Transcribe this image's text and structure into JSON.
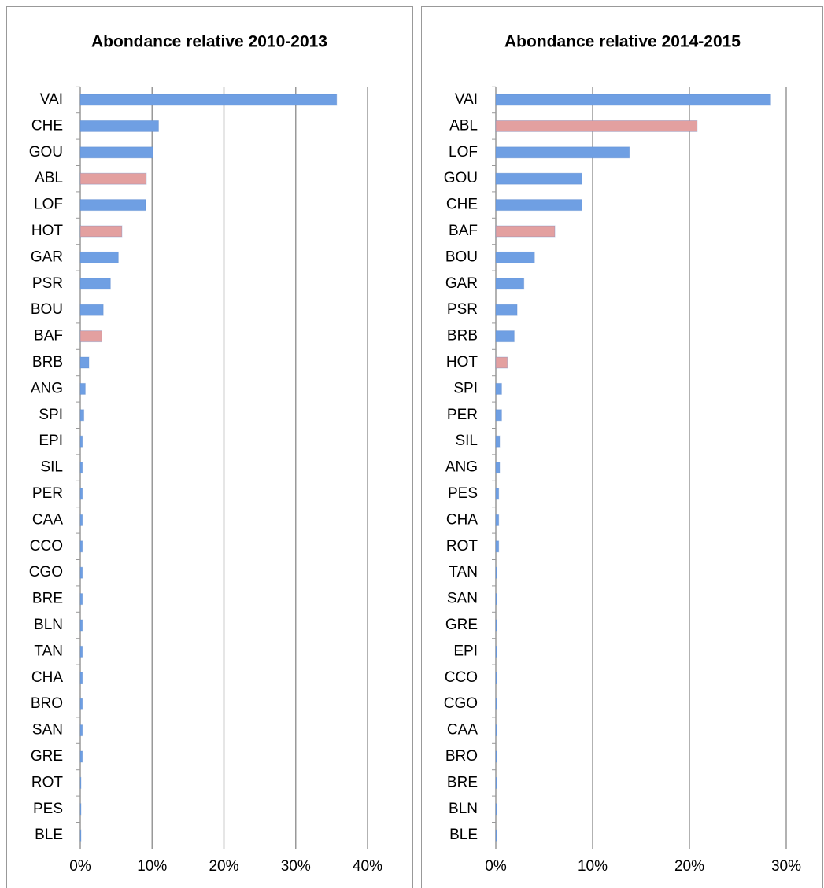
{
  "chart_data": [
    {
      "type": "barh",
      "title": "Abondance relative 2010-2013",
      "categories": [
        "VAI",
        "CHE",
        "GOU",
        "ABL",
        "LOF",
        "HOT",
        "GAR",
        "PSR",
        "BOU",
        "BAF",
        "BRB",
        "ANG",
        "SPI",
        "EPI",
        "SIL",
        "PER",
        "CAA",
        "CCO",
        "CGO",
        "BRE",
        "BLN",
        "TAN",
        "CHA",
        "BRO",
        "SAN",
        "GRE",
        "ROT",
        "PES",
        "BLE"
      ],
      "values": [
        35.7,
        10.9,
        10.1,
        9.2,
        9.1,
        5.8,
        5.3,
        4.2,
        3.2,
        3.0,
        1.2,
        0.7,
        0.5,
        0.3,
        0.3,
        0.3,
        0.3,
        0.3,
        0.3,
        0.3,
        0.3,
        0.3,
        0.3,
        0.3,
        0.3,
        0.3,
        0.1,
        0.1,
        0.1
      ],
      "colors": [
        "#6f9fe3",
        "#6f9fe3",
        "#6f9fe3",
        "#e3a0a0",
        "#6f9fe3",
        "#e3a0a0",
        "#6f9fe3",
        "#6f9fe3",
        "#6f9fe3",
        "#e3a0a0",
        "#6f9fe3",
        "#6f9fe3",
        "#6f9fe3",
        "#6f9fe3",
        "#6f9fe3",
        "#6f9fe3",
        "#6f9fe3",
        "#6f9fe3",
        "#6f9fe3",
        "#6f9fe3",
        "#6f9fe3",
        "#6f9fe3",
        "#6f9fe3",
        "#6f9fe3",
        "#6f9fe3",
        "#6f9fe3",
        "#6f9fe3",
        "#6f9fe3",
        "#6f9fe3"
      ],
      "xlim": [
        0,
        40
      ],
      "xticks": [
        {
          "value": 0,
          "label": "0%"
        },
        {
          "value": 10,
          "label": "10%"
        },
        {
          "value": 20,
          "label": "20%"
        },
        {
          "value": 30,
          "label": "30%"
        },
        {
          "value": 40,
          "label": "40%"
        }
      ],
      "grid": true
    },
    {
      "type": "barh",
      "title": "Abondance relative  2014-2015",
      "categories": [
        "VAI",
        "ABL",
        "LOF",
        "GOU",
        "CHE",
        "BAF",
        "BOU",
        "GAR",
        "PSR",
        "BRB",
        "HOT",
        "SPI",
        "PER",
        "SIL",
        "ANG",
        "PES",
        "CHA",
        "ROT",
        "TAN",
        "SAN",
        "GRE",
        "EPI",
        "CCO",
        "CGO",
        "CAA",
        "BRO",
        "BRE",
        "BLN",
        "BLE"
      ],
      "values": [
        28.4,
        20.8,
        13.8,
        8.9,
        8.9,
        6.1,
        4.0,
        2.9,
        2.2,
        1.9,
        1.2,
        0.6,
        0.6,
        0.4,
        0.4,
        0.3,
        0.3,
        0.3,
        0.1,
        0.1,
        0.1,
        0.1,
        0.1,
        0.1,
        0.1,
        0.1,
        0.1,
        0.1,
        0.1
      ],
      "colors": [
        "#6f9fe3",
        "#e3a0a0",
        "#6f9fe3",
        "#6f9fe3",
        "#6f9fe3",
        "#e3a0a0",
        "#6f9fe3",
        "#6f9fe3",
        "#6f9fe3",
        "#6f9fe3",
        "#e3a0a0",
        "#6f9fe3",
        "#6f9fe3",
        "#6f9fe3",
        "#6f9fe3",
        "#6f9fe3",
        "#6f9fe3",
        "#6f9fe3",
        "#6f9fe3",
        "#6f9fe3",
        "#6f9fe3",
        "#6f9fe3",
        "#6f9fe3",
        "#6f9fe3",
        "#6f9fe3",
        "#6f9fe3",
        "#6f9fe3",
        "#6f9fe3",
        "#6f9fe3"
      ],
      "xlim": [
        0,
        30
      ],
      "xticks": [
        {
          "value": 0,
          "label": "0%"
        },
        {
          "value": 10,
          "label": "10%"
        },
        {
          "value": 20,
          "label": "20%"
        },
        {
          "value": 30,
          "label": "30%"
        }
      ],
      "grid": true
    }
  ]
}
